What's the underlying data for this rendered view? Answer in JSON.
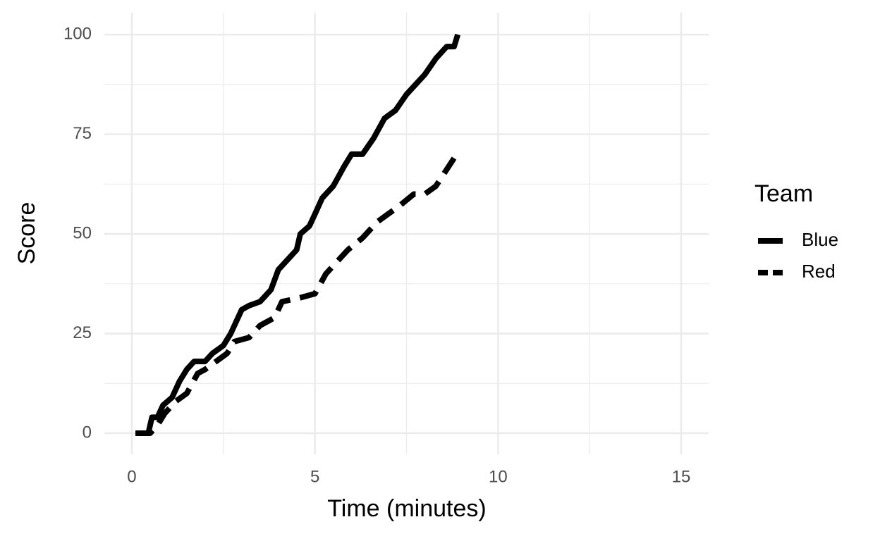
{
  "chart_data": {
    "type": "line",
    "x_label": "Time (minutes)",
    "y_label": "Score",
    "legend_title": "Team",
    "legend": "right",
    "grid": true,
    "xlim": [
      -0.75,
      15.75
    ],
    "xticks": [
      0,
      5,
      10,
      15
    ],
    "ylim": [
      -5.3,
      105.5
    ],
    "yticks": [
      0,
      25,
      50,
      75,
      100
    ],
    "series": [
      {
        "name": "Blue",
        "color": "#000000",
        "linestyle": "solid",
        "x": [
          0.1,
          0.45,
          0.55,
          0.7,
          0.85,
          1.1,
          1.3,
          1.5,
          1.7,
          2.0,
          2.2,
          2.5,
          2.7,
          3.0,
          3.2,
          3.5,
          3.8,
          4.0,
          4.3,
          4.5,
          4.6,
          4.85,
          5.0,
          5.2,
          5.5,
          5.8,
          6.0,
          6.3,
          6.6,
          6.9,
          7.2,
          7.5,
          7.8,
          8.0,
          8.3,
          8.6,
          8.8,
          8.9
        ],
        "values": [
          0,
          0,
          4,
          4,
          7,
          9,
          13,
          16,
          18,
          18,
          20,
          22,
          25,
          31,
          32,
          33,
          36,
          41,
          44,
          46,
          50,
          52,
          55,
          59,
          62,
          67,
          70,
          70,
          74,
          79,
          81,
          85,
          88,
          90,
          94,
          97,
          97,
          100
        ]
      },
      {
        "name": "Red",
        "color": "#000000",
        "linestyle": "dashed",
        "x": [
          0.1,
          0.5,
          0.7,
          0.9,
          1.2,
          1.5,
          1.8,
          2.0,
          2.3,
          2.6,
          2.8,
          3.2,
          3.5,
          3.9,
          4.1,
          4.6,
          5.0,
          5.3,
          5.6,
          5.9,
          6.3,
          6.7,
          7.0,
          7.3,
          7.7,
          8.0,
          8.3,
          8.8
        ],
        "values": [
          0,
          0,
          2,
          5,
          8,
          10,
          15,
          16,
          18,
          20,
          23,
          24,
          27,
          29,
          33,
          34,
          35,
          40,
          43,
          46,
          49,
          53,
          55,
          57,
          60,
          60,
          62,
          69
        ]
      }
    ]
  }
}
